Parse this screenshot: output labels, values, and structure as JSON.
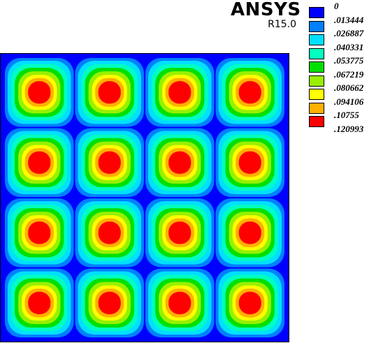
{
  "header": {
    "brand": "ANSYS",
    "version": "R15.0"
  },
  "legend": {
    "items": [
      {
        "label": "0",
        "color": "#0000ff"
      },
      {
        "label": ".013444",
        "color": "#0080ff"
      },
      {
        "label": ".026887",
        "color": "#00e0ff"
      },
      {
        "label": ".040331",
        "color": "#00ffc0"
      },
      {
        "label": ".053775",
        "color": "#00e000"
      },
      {
        "label": ".067219",
        "color": "#98f000"
      },
      {
        "label": ".080662",
        "color": "#ffff00"
      },
      {
        "label": ".094106",
        "color": "#ffb000"
      },
      {
        "label": ".10755",
        "color": "#ff0000"
      },
      {
        "label": ".120993",
        "color": null
      }
    ]
  },
  "plot": {
    "grid_rows": 4,
    "grid_cols": 4,
    "background_color": "#0000ff",
    "border_color": "#000000"
  }
}
